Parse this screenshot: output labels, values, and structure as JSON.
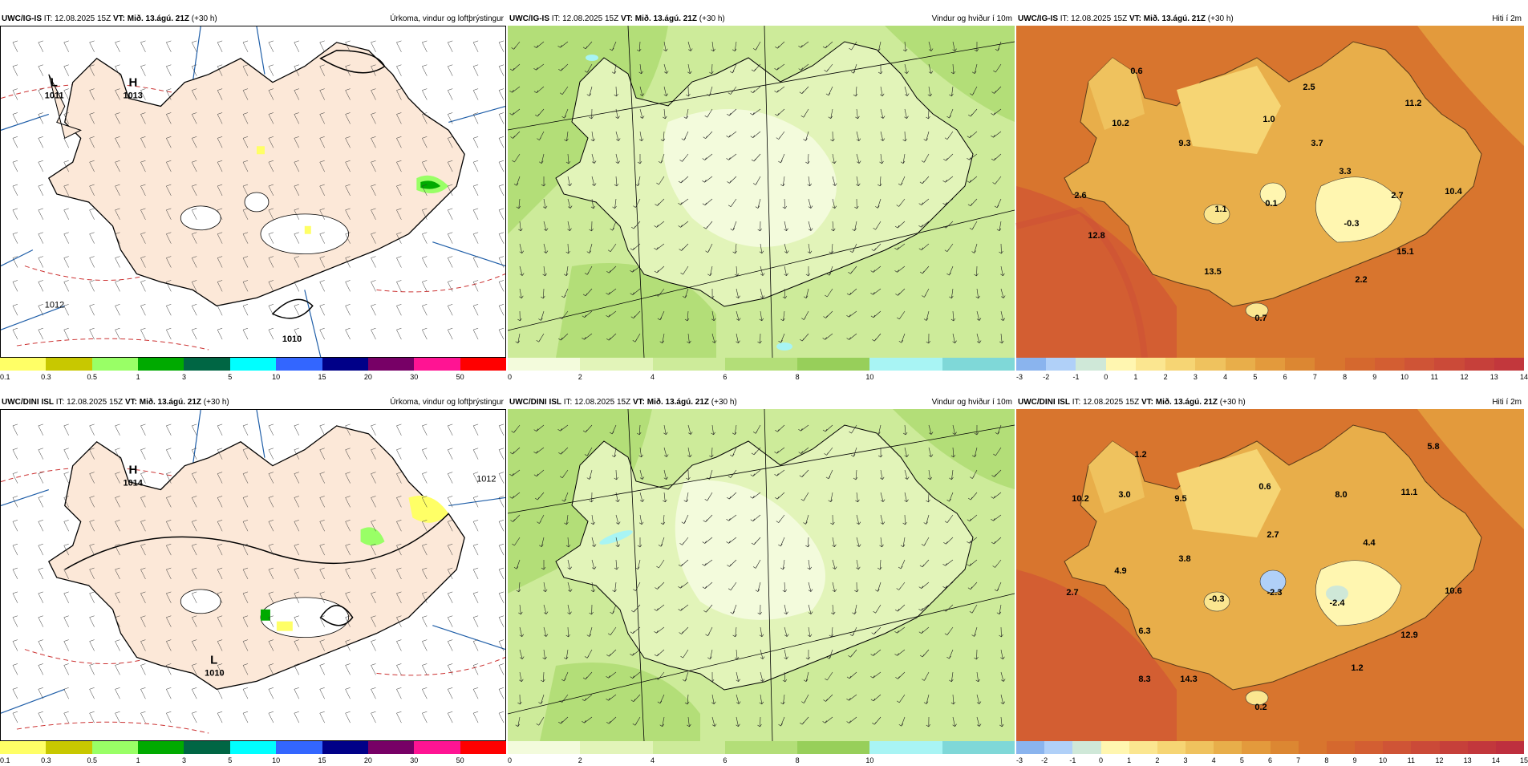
{
  "panels": [
    {
      "model": "UWC/IG-IS",
      "it": "IT: 12.08.2025 15Z",
      "vt": "VT: Mið. 13.ágú. 21Z",
      "lead": "(+30 h)",
      "title": "Úrkoma, vindur og loftþrýstingur"
    },
    {
      "model": "UWC/IG-IS",
      "it": "IT: 12.08.2025 15Z",
      "vt": "VT: Mið. 13.ágú. 21Z",
      "lead": "(+30 h)",
      "title": "Vindur og hviður í 10m"
    },
    {
      "model": "UWC/IG-IS",
      "it": "IT: 12.08.2025 15Z",
      "vt": "VT: Mið. 13.ágú. 21Z",
      "lead": "(+30 h)",
      "title": "Hiti í 2m"
    },
    {
      "model": "UWC/DINI ISL",
      "it": "IT: 12.08.2025 15Z",
      "vt": "VT: Mið. 13.ágú. 21Z",
      "lead": "(+30 h)",
      "title": "Úrkoma, vindur og loftþrýstingur"
    },
    {
      "model": "UWC/DINI ISL",
      "it": "IT: 12.08.2025 15Z",
      "vt": "VT: Mið. 13.ágú. 21Z",
      "lead": "(+30 h)",
      "title": "Vindur og hviður í 10m"
    },
    {
      "model": "UWC/DINI ISL",
      "it": "IT: 12.08.2025 15Z",
      "vt": "VT: Mið. 13.ágú. 21Z",
      "lead": "(+30 h)",
      "title": "Hiti í 2m"
    }
  ],
  "legends": {
    "precip": {
      "colors": [
        "#ffff66",
        "#c8c800",
        "#99ff66",
        "#00aa00",
        "#006644",
        "#00ffff",
        "#3366ff",
        "#000088",
        "#770066",
        "#ff1493",
        "#ff0000"
      ],
      "labels": [
        "0.1",
        "0.3",
        "0.5",
        "1",
        "3",
        "5",
        "10",
        "15",
        "20",
        "30",
        "50"
      ]
    },
    "wind": {
      "colors": [
        "#f3fbdc",
        "#e2f4b9",
        "#cdeb9a",
        "#b3de78",
        "#97cf5a",
        "#a8f4f4",
        "#7fd8d8"
      ],
      "labels": [
        "0",
        "2",
        "4",
        "6",
        "8",
        "10"
      ]
    },
    "temp_top": {
      "colors": [
        "#8ab4ee",
        "#b0d0f8",
        "#cfe8d8",
        "#fff6b0",
        "#fbe690",
        "#f6d574",
        "#efc25e",
        "#e8ae4a",
        "#e39a3c",
        "#dc8732",
        "#d8752e",
        "#d5682e",
        "#d35e32",
        "#cf5436",
        "#cb4a38",
        "#c6403a",
        "#c2373c"
      ],
      "labels": [
        "-3",
        "-2",
        "-1",
        "0",
        "1",
        "2",
        "3",
        "4",
        "5",
        "6",
        "7",
        "8",
        "9",
        "10",
        "11",
        "12",
        "13",
        "14"
      ]
    },
    "temp_bot": {
      "colors": [
        "#8ab4ee",
        "#b0d0f8",
        "#cfe8d8",
        "#fff6b0",
        "#fbe690",
        "#f6d574",
        "#efc25e",
        "#e8ae4a",
        "#e39a3c",
        "#dc8732",
        "#d8752e",
        "#d5682e",
        "#d35e32",
        "#cf5436",
        "#cb4a38",
        "#c6403a",
        "#c2373c",
        "#be2f3e"
      ],
      "labels": [
        "-3",
        "-2",
        "-1",
        "0",
        "1",
        "2",
        "3",
        "4",
        "5",
        "6",
        "7",
        "8",
        "9",
        "10",
        "11",
        "12",
        "13",
        "14",
        "15"
      ]
    }
  },
  "pressure": {
    "top": {
      "L_label": "L",
      "L_value": "1011",
      "H_label": "H",
      "H_value": "1013",
      "low2_value": "1010",
      "isobar_label": "1012"
    },
    "bottom": {
      "L_label": "L",
      "L_value": "1010",
      "H_label": "H",
      "H_value": "1014",
      "isobar_label": "1012"
    }
  },
  "temps": {
    "top": [
      "0.6",
      "2.5",
      "11.2",
      "10.2",
      "1.0",
      "9.3",
      "3.7",
      "3.3",
      "2.6",
      "2.7",
      "10.4",
      "1.1",
      "0.1",
      "-0.3",
      "12.8",
      "15.1",
      "13.5",
      "2.2",
      "0.7"
    ],
    "bottom": [
      "1.2",
      "5.8",
      "10.2",
      "3.0",
      "9.5",
      "0.6",
      "8.0",
      "11.1",
      "2.7",
      "4.4",
      "3.8",
      "4.9",
      "2.7",
      "-0.3",
      "-2.3",
      "-2.4",
      "10.6",
      "6.3",
      "12.9",
      "8.3",
      "14.3",
      "1.2",
      "0.2"
    ]
  }
}
